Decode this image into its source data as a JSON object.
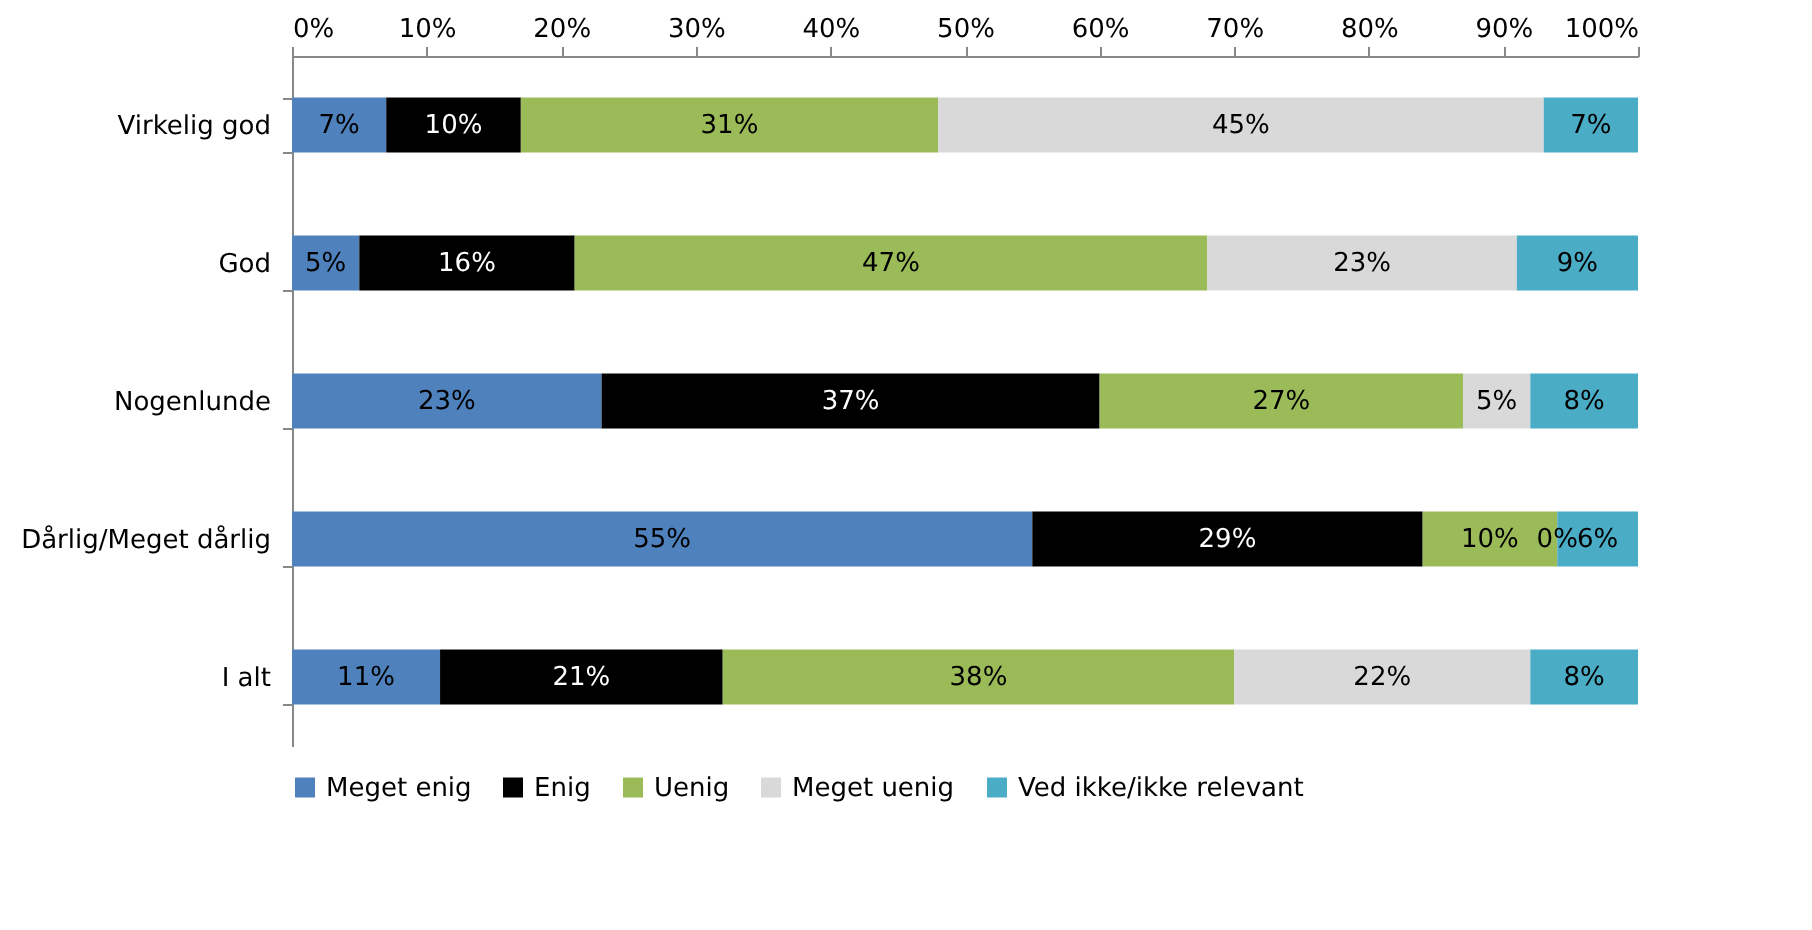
{
  "chart_data": {
    "type": "bar",
    "orientation": "horizontal",
    "stacked": true,
    "legend": "bottom",
    "grid": false,
    "categories": [
      "Virkelig god",
      "God",
      "Nogenlunde",
      "Dårlig/Meget dårlig",
      "I alt"
    ],
    "xlim": [
      0,
      100
    ],
    "xticks": [
      {
        "value": 0,
        "label": "0%"
      },
      {
        "value": 10,
        "label": "10%"
      },
      {
        "value": 20,
        "label": "20%"
      },
      {
        "value": 30,
        "label": "30%"
      },
      {
        "value": 40,
        "label": "40%"
      },
      {
        "value": 50,
        "label": "50%"
      },
      {
        "value": 60,
        "label": "60%"
      },
      {
        "value": 70,
        "label": "70%"
      },
      {
        "value": 80,
        "label": "80%"
      },
      {
        "value": 90,
        "label": "90%"
      },
      {
        "value": 100,
        "label": "100%"
      }
    ],
    "series": [
      {
        "name": "Meget enig",
        "color": "#4f81bd",
        "values": [
          7,
          5,
          23,
          55,
          11
        ],
        "value_labels": [
          "7%",
          "5%",
          "23%",
          "55%",
          "11%"
        ]
      },
      {
        "name": "Enig",
        "color": "#000000",
        "values": [
          10,
          16,
          37,
          29,
          21
        ],
        "value_labels": [
          "10%",
          "16%",
          "37%",
          "29%",
          "21%"
        ]
      },
      {
        "name": "Uenig",
        "color": "#9bbb59",
        "values": [
          31,
          47,
          27,
          10,
          38
        ],
        "value_labels": [
          "31%",
          "47%",
          "27%",
          "10%",
          "38%"
        ]
      },
      {
        "name": "Meget uenig",
        "color": "#d9d9d9",
        "values": [
          45,
          23,
          5,
          0,
          22
        ],
        "value_labels": [
          "45%",
          "23%",
          "5%",
          "0%",
          "22%"
        ]
      },
      {
        "name": "Ved ikke/ikke relevant",
        "color": "#4bacc6",
        "values": [
          7,
          9,
          8,
          6,
          8
        ],
        "value_labels": [
          "7%",
          "9%",
          "8%",
          "6%",
          "8%"
        ]
      }
    ]
  }
}
